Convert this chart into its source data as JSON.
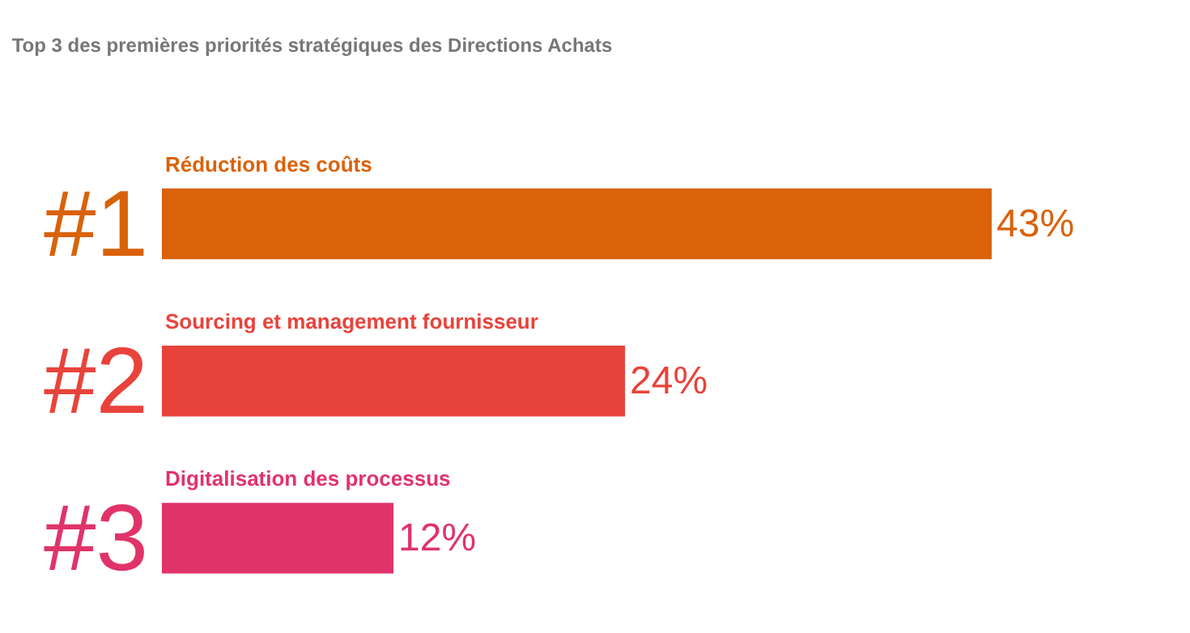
{
  "chart_data": {
    "type": "bar",
    "orientation": "horizontal",
    "title": "Top 3 des premières priorités stratégiques des Directions Achats",
    "categories": [
      "Réduction des coûts",
      "Sourcing et management fournisseur",
      "Digitalisation des processus"
    ],
    "values": [
      43,
      24,
      12
    ],
    "colors": [
      "#d9620a",
      "#e8433b",
      "#e0336a"
    ],
    "value_labels": [
      "43%",
      "24%",
      "12%"
    ],
    "annotations": [
      "#1",
      "#2",
      "#3"
    ],
    "legend": false,
    "tick_labels": false
  }
}
